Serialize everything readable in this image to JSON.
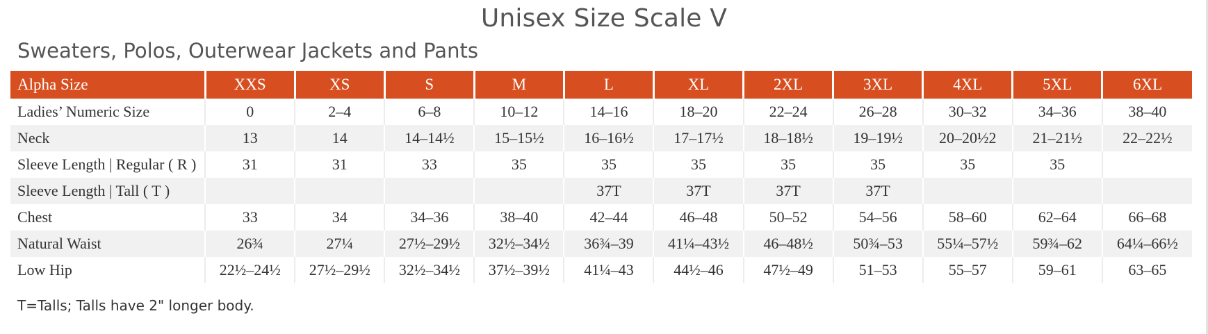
{
  "title": "Unisex Size Scale V",
  "subtitle": "Sweaters, Polos, Outerwear Jackets and Pants",
  "colors": {
    "header_bg": "#d74f20",
    "header_text": "#ffffff",
    "stripe": "#f1f1f1"
  },
  "table": {
    "header": {
      "label": "Alpha Size",
      "sizes": [
        "XXS",
        "XS",
        "S",
        "M",
        "L",
        "XL",
        "2XL",
        "3XL",
        "4XL",
        "5XL",
        "6XL"
      ]
    },
    "rows": [
      {
        "label": "Ladies’ Numeric Size",
        "values": [
          "0",
          "2–4",
          "6–8",
          "10–12",
          "14–16",
          "18–20",
          "22–24",
          "26–28",
          "30–32",
          "34–36",
          "38–40"
        ]
      },
      {
        "label": "Neck",
        "values": [
          "13",
          "14",
          "14–14½",
          "15–15½",
          "16–16½",
          "17–17½",
          "18–18½",
          "19–19½",
          "20–20½2",
          "21–21½",
          "22–22½"
        ]
      },
      {
        "label": "Sleeve Length | Regular ( R )",
        "values": [
          "31",
          "31",
          "33",
          "35",
          "35",
          "35",
          "35",
          "35",
          "35",
          "35",
          ""
        ]
      },
      {
        "label": "Sleeve Length | Tall ( T )",
        "values": [
          "",
          "",
          "",
          "",
          "37T",
          "37T",
          "37T",
          "37T",
          "",
          "",
          ""
        ]
      },
      {
        "label": "Chest",
        "values": [
          "33",
          "34",
          "34–36",
          "38–40",
          "42–44",
          "46–48",
          "50–52",
          "54–56",
          "58–60",
          "62–64",
          "66–68"
        ]
      },
      {
        "label": "Natural Waist",
        "values": [
          "26¾",
          "27¼",
          "27½–29½",
          "32½–34½",
          "36¾–39",
          "41¼–43½",
          "46–48½",
          "50¾–53",
          "55¼–57½",
          "59¾–62",
          "64¼–66½"
        ]
      },
      {
        "label": "Low Hip",
        "values": [
          "22½–24½",
          "27½–29½",
          "32½–34½",
          "37½–39½",
          "41¼–43",
          "44½–46",
          "47½–49",
          "51–53",
          "55–57",
          "59–61",
          "63–65"
        ]
      }
    ]
  },
  "footnote": "T=Talls; Talls have 2\" longer body."
}
